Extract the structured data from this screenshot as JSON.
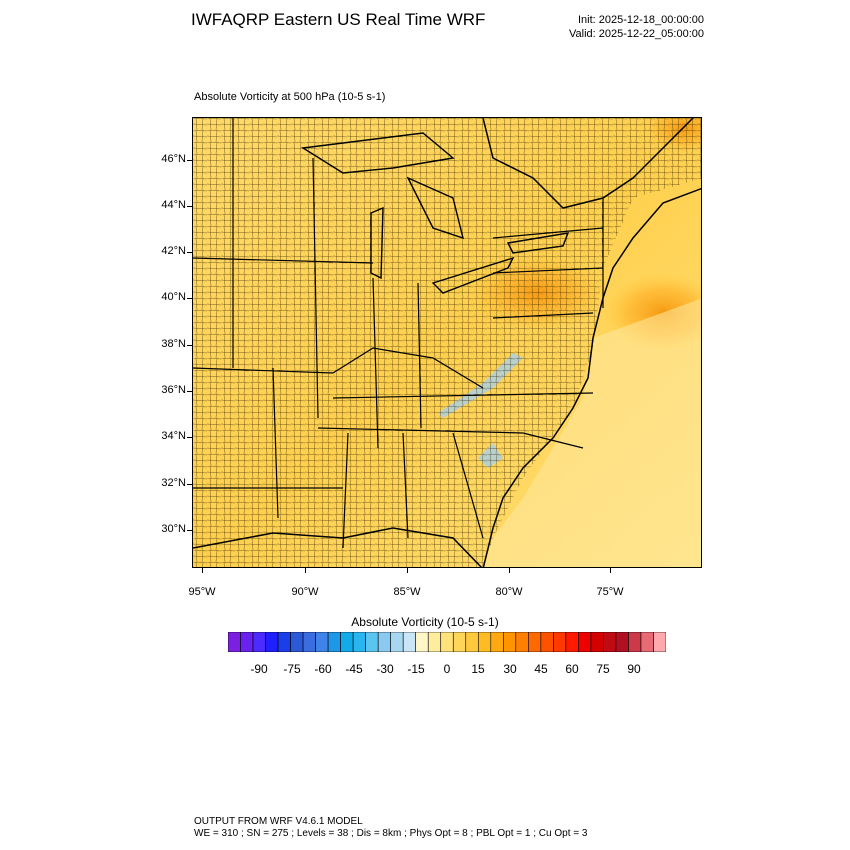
{
  "header": {
    "title": "IWFAQRP Eastern US Real Time WRF",
    "init": "Init: 2025-12-18_00:00:00",
    "valid": "Valid: 2025-12-22_05:00:00"
  },
  "plot": {
    "field_label": "Absolute Vorticity at 500 hPa   (10-5 s-1)",
    "lat_labels": [
      "46°N",
      "44°N",
      "42°N",
      "40°N",
      "38°N",
      "36°N",
      "34°N",
      "32°N",
      "30°N"
    ],
    "lon_labels": [
      "95°W",
      "90°W",
      "85°W",
      "80°W",
      "75°W"
    ]
  },
  "colorbar": {
    "title": "Absolute Vorticity  (10-5 s-1)",
    "labels": [
      "-90",
      "-75",
      "-60",
      "-45",
      "-30",
      "-15",
      "0",
      "15",
      "30",
      "45",
      "60",
      "75",
      "90"
    ],
    "colors": [
      "#7b1fe0",
      "#6a22f0",
      "#4b2bff",
      "#2020ff",
      "#1a3ee8",
      "#2a5ad8",
      "#3a6de0",
      "#3f82e8",
      "#1f97e8",
      "#12aae8",
      "#29b6f0",
      "#5cc4f0",
      "#8acaf0",
      "#a8d8f0",
      "#c8e6f6",
      "#fff6c8",
      "#ffed9e",
      "#ffe27a",
      "#ffd65a",
      "#ffc93e",
      "#ffbb22",
      "#ffa812",
      "#ff9400",
      "#ff8000",
      "#ff6a00",
      "#ff5200",
      "#ff3a00",
      "#ff1a00",
      "#ee0000",
      "#d40000",
      "#c00a14",
      "#b01022",
      "#cc3a4a",
      "#e86a74",
      "#ffa8ae"
    ]
  },
  "footer": {
    "line1": "OUTPUT FROM WRF V4.6.1 MODEL",
    "line2": "WE = 310 ; SN = 275 ; Levels = 38 ; Dis = 8km ; Phys Opt = 8 ; PBL Opt = 1 ; Cu Opt = 3"
  }
}
